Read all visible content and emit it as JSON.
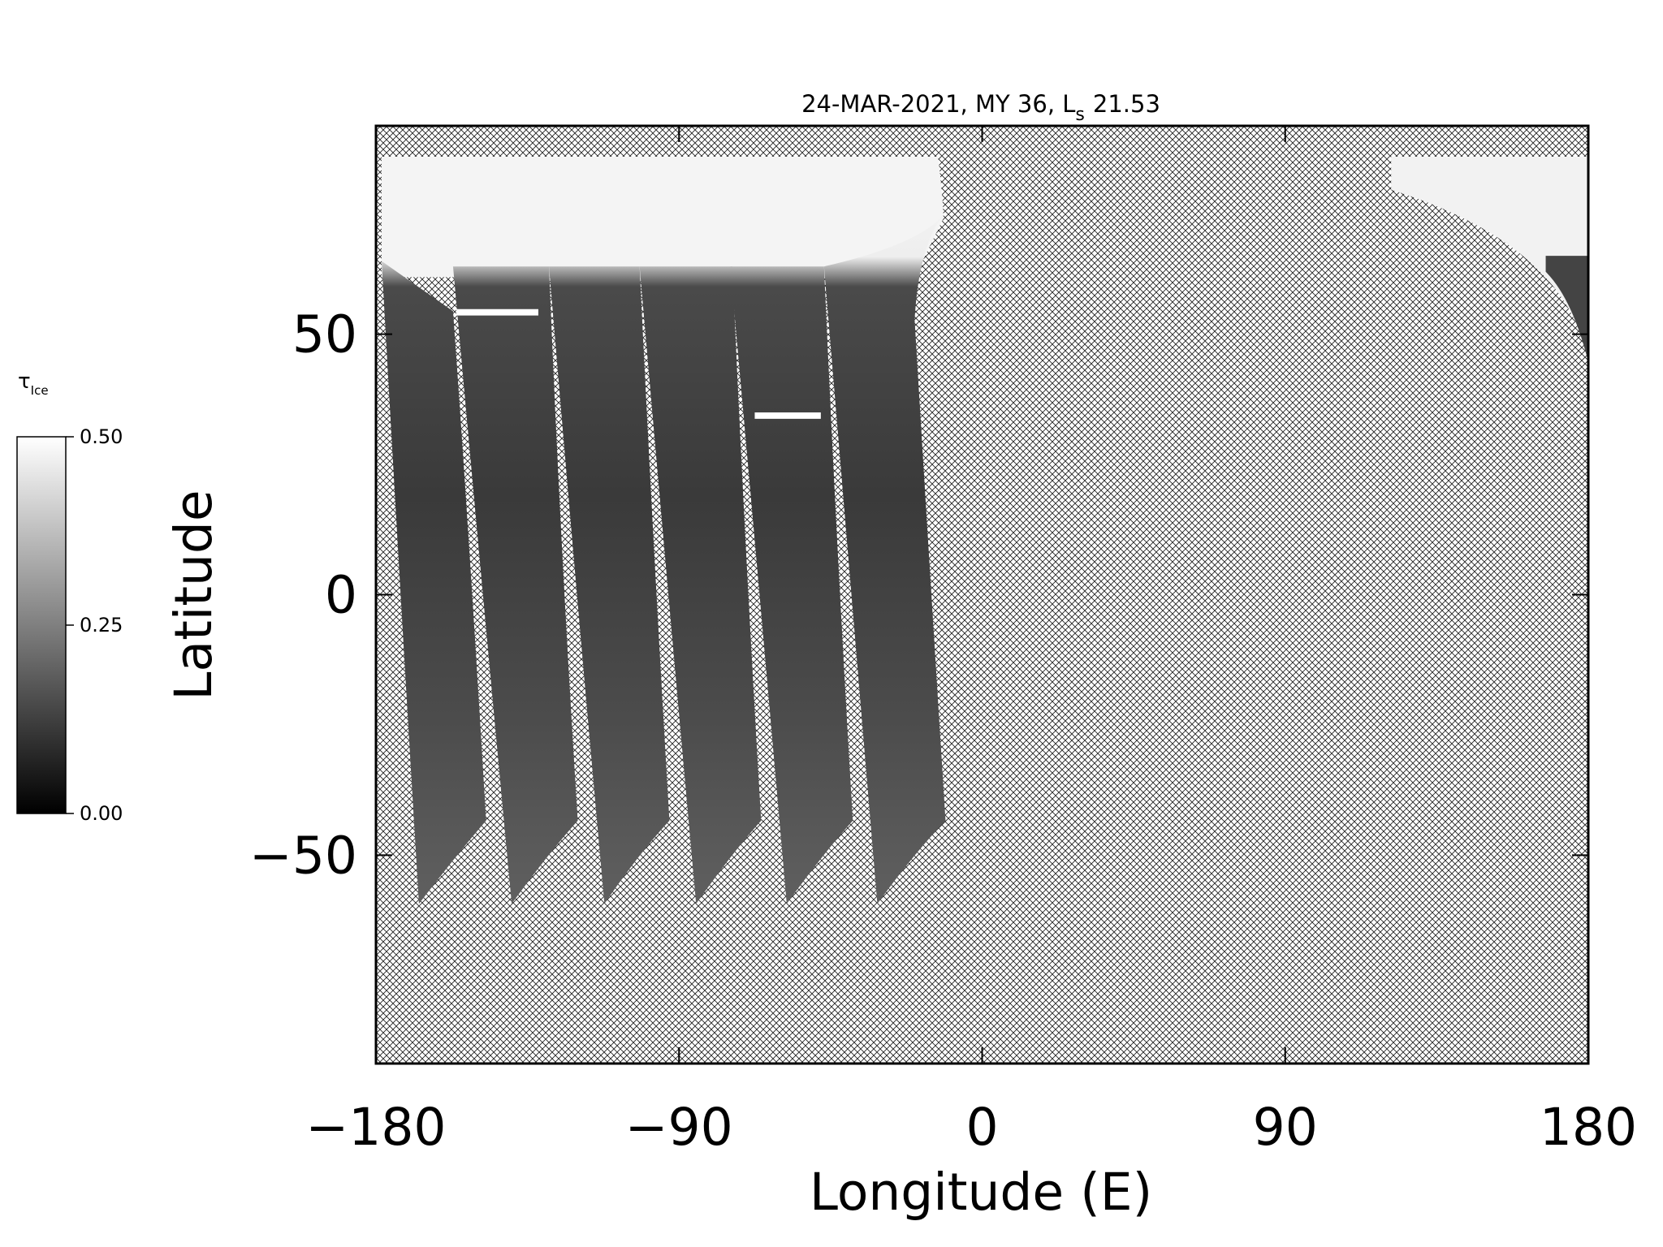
{
  "chart_data": {
    "type": "map",
    "title": "24-MAR-2021, MY 36,  L",
    "title_subscript": "s",
    "title_value": "21.53",
    "xlabel": "Longitude (E)",
    "ylabel": "Latitude",
    "xlim": [
      -180,
      180
    ],
    "ylim": [
      -90,
      90
    ],
    "xticks": [
      {
        "value": -180,
        "label": "−180"
      },
      {
        "value": -90,
        "label": "−90"
      },
      0,
      90,
      180
    ],
    "yticks": [
      {
        "value": -50,
        "label": "−50"
      },
      0,
      50
    ],
    "colorbar": {
      "label": "τ",
      "label_subscript": "Ice",
      "lim": [
        0,
        0.5
      ],
      "ticks": [
        {
          "value": 0,
          "label": "0.00"
        },
        0.25,
        {
          "value": 0.5,
          "label": "0.50"
        }
      ]
    }
  }
}
